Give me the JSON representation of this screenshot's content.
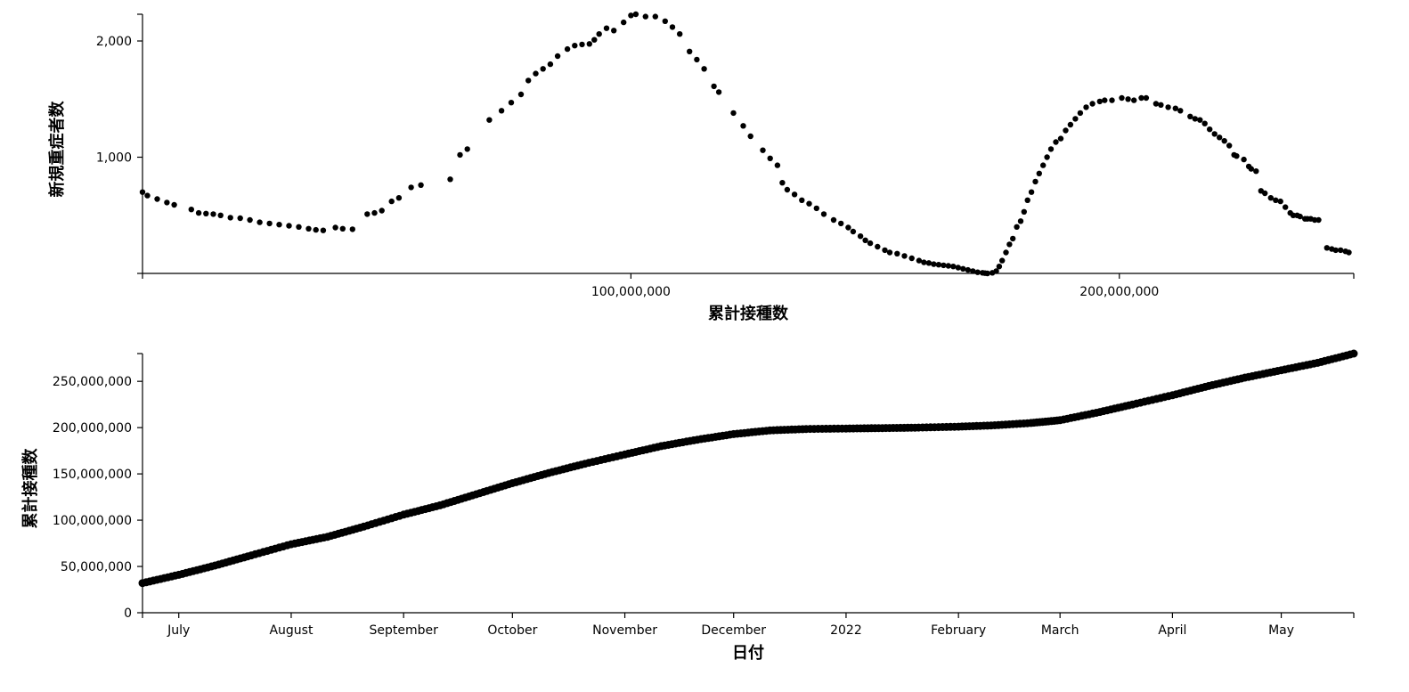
{
  "chart_data": [
    {
      "type": "scatter",
      "xlabel": "累計接種数",
      "ylabel": "新規重症者数",
      "xlim": [
        0,
        248000000
      ],
      "ylim": [
        0,
        2230
      ],
      "xticks": [
        0,
        100000000,
        200000000,
        248000000
      ],
      "xtick_labels": [
        "",
        "100,000,000",
        "200,000,000",
        ""
      ],
      "yticks": [
        0,
        1000,
        2000
      ],
      "ytick_labels": [
        "",
        "1,000",
        "2,000"
      ],
      "grid": false,
      "points": [
        [
          0,
          700
        ],
        [
          1000000,
          670
        ],
        [
          3000000,
          640
        ],
        [
          5000000,
          610
        ],
        [
          6500000,
          590
        ],
        [
          10000000,
          550
        ],
        [
          11500000,
          520
        ],
        [
          13000000,
          515
        ],
        [
          14500000,
          510
        ],
        [
          16000000,
          500
        ],
        [
          18000000,
          480
        ],
        [
          20000000,
          475
        ],
        [
          22000000,
          460
        ],
        [
          24000000,
          440
        ],
        [
          26000000,
          430
        ],
        [
          28000000,
          420
        ],
        [
          30000000,
          410
        ],
        [
          32000000,
          400
        ],
        [
          34000000,
          385
        ],
        [
          35500000,
          375
        ],
        [
          37000000,
          370
        ],
        [
          39500000,
          395
        ],
        [
          41000000,
          385
        ],
        [
          43000000,
          380
        ],
        [
          46000000,
          510
        ],
        [
          47500000,
          520
        ],
        [
          49000000,
          540
        ],
        [
          51000000,
          620
        ],
        [
          52500000,
          650
        ],
        [
          55000000,
          740
        ],
        [
          57000000,
          760
        ],
        [
          63000000,
          810
        ],
        [
          65000000,
          1020
        ],
        [
          66500000,
          1070
        ],
        [
          71000000,
          1320
        ],
        [
          73500000,
          1400
        ],
        [
          75500000,
          1470
        ],
        [
          77500000,
          1540
        ],
        [
          79000000,
          1660
        ],
        [
          80500000,
          1720
        ],
        [
          82000000,
          1760
        ],
        [
          83500000,
          1800
        ],
        [
          85000000,
          1870
        ],
        [
          87000000,
          1930
        ],
        [
          88500000,
          1960
        ],
        [
          90000000,
          1970
        ],
        [
          91500000,
          1975
        ],
        [
          92500000,
          2010
        ],
        [
          93500000,
          2060
        ],
        [
          95000000,
          2110
        ],
        [
          96500000,
          2090
        ],
        [
          98500000,
          2160
        ],
        [
          100000000,
          2220
        ],
        [
          101000000,
          2230
        ],
        [
          103000000,
          2210
        ],
        [
          105000000,
          2210
        ],
        [
          107000000,
          2170
        ],
        [
          108500000,
          2120
        ],
        [
          110000000,
          2060
        ],
        [
          112000000,
          1910
        ],
        [
          113500000,
          1840
        ],
        [
          115000000,
          1760
        ],
        [
          117000000,
          1610
        ],
        [
          118000000,
          1560
        ],
        [
          121000000,
          1380
        ],
        [
          123000000,
          1270
        ],
        [
          124500000,
          1180
        ],
        [
          127000000,
          1060
        ],
        [
          128500000,
          990
        ],
        [
          130000000,
          930
        ],
        [
          131000000,
          780
        ],
        [
          132000000,
          720
        ],
        [
          133500000,
          680
        ],
        [
          135000000,
          630
        ],
        [
          136500000,
          600
        ],
        [
          138000000,
          560
        ],
        [
          139500000,
          510
        ],
        [
          141500000,
          460
        ],
        [
          143000000,
          430
        ],
        [
          144500000,
          395
        ],
        [
          145500000,
          360
        ],
        [
          147000000,
          320
        ],
        [
          148000000,
          285
        ],
        [
          149000000,
          260
        ],
        [
          150500000,
          230
        ],
        [
          152000000,
          200
        ],
        [
          153000000,
          180
        ],
        [
          154500000,
          170
        ],
        [
          156000000,
          150
        ],
        [
          157500000,
          130
        ],
        [
          159000000,
          110
        ],
        [
          160000000,
          95
        ],
        [
          161000000,
          90
        ],
        [
          162000000,
          80
        ],
        [
          163000000,
          75
        ],
        [
          164000000,
          70
        ],
        [
          165000000,
          65
        ],
        [
          166000000,
          60
        ],
        [
          167000000,
          50
        ],
        [
          168000000,
          40
        ],
        [
          169000000,
          30
        ],
        [
          170000000,
          20
        ],
        [
          171000000,
          10
        ],
        [
          172000000,
          5
        ],
        [
          172500000,
          2
        ],
        [
          173000000,
          0
        ],
        [
          174000000,
          5
        ],
        [
          174800000,
          20
        ],
        [
          175400000,
          60
        ],
        [
          176000000,
          110
        ],
        [
          176800000,
          180
        ],
        [
          177500000,
          250
        ],
        [
          178200000,
          300
        ],
        [
          179000000,
          400
        ],
        [
          179800000,
          450
        ],
        [
          180500000,
          530
        ],
        [
          181200000,
          630
        ],
        [
          182000000,
          700
        ],
        [
          182800000,
          790
        ],
        [
          183600000,
          860
        ],
        [
          184400000,
          930
        ],
        [
          185200000,
          1000
        ],
        [
          186000000,
          1070
        ],
        [
          187000000,
          1130
        ],
        [
          188000000,
          1160
        ],
        [
          189000000,
          1230
        ],
        [
          190000000,
          1280
        ],
        [
          191000000,
          1330
        ],
        [
          192000000,
          1380
        ],
        [
          193200000,
          1430
        ],
        [
          194500000,
          1460
        ],
        [
          196000000,
          1480
        ],
        [
          197000000,
          1490
        ],
        [
          198500000,
          1490
        ],
        [
          200500000,
          1510
        ],
        [
          201800000,
          1500
        ],
        [
          203000000,
          1490
        ],
        [
          204500000,
          1510
        ],
        [
          205500000,
          1510
        ],
        [
          207500000,
          1460
        ],
        [
          208500000,
          1450
        ],
        [
          210000000,
          1430
        ],
        [
          211500000,
          1420
        ],
        [
          212500000,
          1400
        ],
        [
          214500000,
          1350
        ],
        [
          215500000,
          1330
        ],
        [
          216500000,
          1320
        ],
        [
          217500000,
          1290
        ],
        [
          218500000,
          1240
        ],
        [
          219500000,
          1200
        ],
        [
          220500000,
          1170
        ],
        [
          221500000,
          1140
        ],
        [
          222500000,
          1100
        ],
        [
          223500000,
          1020
        ],
        [
          224000000,
          1010
        ],
        [
          225500000,
          980
        ],
        [
          226500000,
          920
        ],
        [
          227000000,
          900
        ],
        [
          228000000,
          880
        ],
        [
          229000000,
          710
        ],
        [
          229800000,
          690
        ],
        [
          231000000,
          650
        ],
        [
          232000000,
          630
        ],
        [
          233000000,
          620
        ],
        [
          234000000,
          570
        ],
        [
          235000000,
          520
        ],
        [
          235600000,
          500
        ],
        [
          236400000,
          500
        ],
        [
          237000000,
          490
        ],
        [
          238000000,
          470
        ],
        [
          238500000,
          470
        ],
        [
          239200000,
          470
        ],
        [
          240000000,
          460
        ],
        [
          240800000,
          460
        ],
        [
          242500000,
          220
        ],
        [
          243500000,
          210
        ],
        [
          244300000,
          200
        ],
        [
          245300000,
          200
        ],
        [
          246300000,
          190
        ],
        [
          247000000,
          180
        ]
      ],
      "markers": [
        [
          241500000,
          210
        ],
        [
          243000000,
          200
        ],
        [
          244500000,
          195
        ],
        [
          246000000,
          185
        ],
        [
          247500000,
          170
        ],
        [
          248000000,
          160
        ],
        [
          248000000,
          150
        ],
        [
          248000000,
          100
        ],
        [
          248000000,
          70
        ]
      ]
    },
    {
      "type": "line",
      "xlabel": "日付",
      "ylabel": "累計接種数",
      "xlim": [
        "2021-06-21",
        "2022-05-21"
      ],
      "ylim": [
        0,
        280000000
      ],
      "xticks": [
        "2021-07-01",
        "2021-08-01",
        "2021-09-01",
        "2021-10-01",
        "2021-11-01",
        "2021-12-01",
        "2022-01-01",
        "2022-02-01",
        "2022-03-01",
        "2022-04-01",
        "2022-05-01"
      ],
      "xtick_labels": [
        "July",
        "August",
        "September",
        "October",
        "November",
        "December",
        "2022",
        "February",
        "March",
        "April",
        "May"
      ],
      "yticks": [
        0,
        50000000,
        100000000,
        150000000,
        200000000,
        250000000
      ],
      "ytick_labels": [
        "0",
        "50,000,000",
        "100,000,000",
        "150,000,000",
        "200,000,000",
        "250,000,000"
      ],
      "grid": false,
      "points": [
        [
          "2021-06-21",
          32000000
        ],
        [
          "2021-07-01",
          41000000
        ],
        [
          "2021-07-11",
          51000000
        ],
        [
          "2021-07-21",
          62000000
        ],
        [
          "2021-08-01",
          74000000
        ],
        [
          "2021-08-11",
          82000000
        ],
        [
          "2021-08-21",
          93000000
        ],
        [
          "2021-09-01",
          106000000
        ],
        [
          "2021-09-11",
          116000000
        ],
        [
          "2021-09-21",
          128000000
        ],
        [
          "2021-10-01",
          140000000
        ],
        [
          "2021-10-11",
          151000000
        ],
        [
          "2021-10-21",
          161000000
        ],
        [
          "2021-11-01",
          171000000
        ],
        [
          "2021-11-11",
          180000000
        ],
        [
          "2021-11-21",
          187000000
        ],
        [
          "2021-12-01",
          193000000
        ],
        [
          "2021-12-11",
          197000000
        ],
        [
          "2021-12-21",
          198500000
        ],
        [
          "2022-01-01",
          199000000
        ],
        [
          "2022-01-11",
          199500000
        ],
        [
          "2022-01-21",
          200000000
        ],
        [
          "2022-02-01",
          201000000
        ],
        [
          "2022-02-11",
          202500000
        ],
        [
          "2022-02-21",
          205000000
        ],
        [
          "2022-03-01",
          208000000
        ],
        [
          "2022-03-11",
          216000000
        ],
        [
          "2022-03-21",
          225000000
        ],
        [
          "2022-04-01",
          235000000
        ],
        [
          "2022-04-11",
          245000000
        ],
        [
          "2022-04-21",
          254000000
        ],
        [
          "2022-05-01",
          262000000
        ],
        [
          "2022-05-11",
          270000000
        ],
        [
          "2022-05-21",
          280000000
        ]
      ]
    }
  ]
}
